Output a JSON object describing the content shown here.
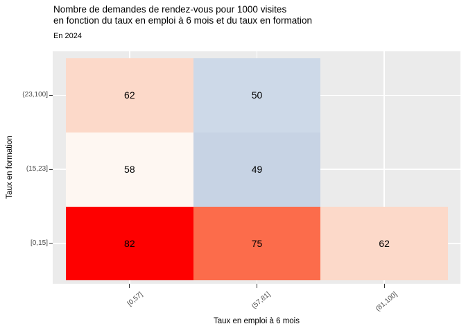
{
  "title_line1": "Nombre de demandes de rendez-vous pour 1000 visites",
  "title_line2": "en fonction du taux en emploi à 6 mois et du taux en formation",
  "subtitle": "En 2024",
  "chart_data": {
    "type": "heatmap",
    "title": "Nombre de demandes de rendez-vous pour 1000 visites en fonction du taux en emploi à 6 mois et du taux en formation",
    "subtitle": "En 2024",
    "xlabel": "Taux en emploi à 6 mois",
    "ylabel": "Taux en formation",
    "x_categories": [
      "[0,57]",
      "(57,81]",
      "(81,100]"
    ],
    "y_categories_top_to_bottom": [
      "(23,100]",
      "(15,23]",
      "[0,15]"
    ],
    "cells": [
      {
        "x": "[0,57]",
        "y": "(23,100]",
        "value": 62,
        "fill": "#fcd9c9"
      },
      {
        "x": "(57,81]",
        "y": "(23,100]",
        "value": 50,
        "fill": "#cdd9e8"
      },
      {
        "x": "[0,57]",
        "y": "(15,23]",
        "value": 58,
        "fill": "#fef7f2"
      },
      {
        "x": "(57,81]",
        "y": "(15,23]",
        "value": 49,
        "fill": "#c7d3e4"
      },
      {
        "x": "[0,57]",
        "y": "[0,15]",
        "value": 82,
        "fill": "#fe0000"
      },
      {
        "x": "(57,81]",
        "y": "[0,15]",
        "value": 75,
        "fill": "#fc6c4b"
      },
      {
        "x": "(81,100]",
        "y": "[0,15]",
        "value": 62,
        "fill": "#fcd9c9"
      }
    ],
    "empty_cell_categories": [
      {
        "x": "(81,100]",
        "y": "(23,100]"
      },
      {
        "x": "(81,100]",
        "y": "(15,23]"
      }
    ],
    "legend_position": "none",
    "grid": true,
    "colors": {
      "figure_background": "#ffffff",
      "panel_background": "#ebebeb",
      "grid_line": "#ffffff",
      "tick_label": "#4d4d4d",
      "tick_mark": "#333333",
      "text": "#000000"
    }
  }
}
